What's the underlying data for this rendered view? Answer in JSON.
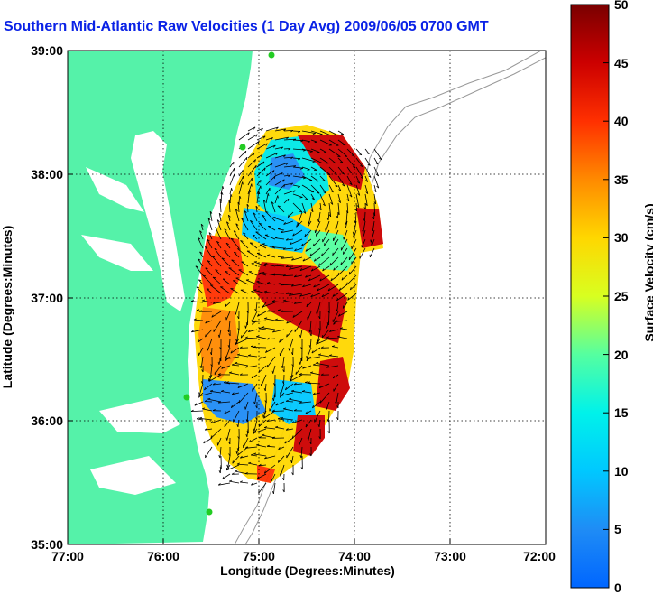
{
  "title": "Southern Mid-Atlantic Raw Velocities (1 Day Avg) 2009/06/05 0700 GMT",
  "axes": {
    "xlabel": "Longitude (Degrees:Minutes)",
    "ylabel": "Latitude (Degrees:Minutes)",
    "xticks": [
      "77:00",
      "76:00",
      "75:00",
      "74:00",
      "73:00",
      "72:00"
    ],
    "yticks": [
      "39:00",
      "38:00",
      "37:00",
      "36:00",
      "35:00"
    ]
  },
  "colorbar": {
    "label": "Surface Velocity (cm/s)",
    "ticks": [
      "0",
      "5",
      "10",
      "15",
      "20",
      "25",
      "30",
      "35",
      "40",
      "45",
      "50"
    ],
    "min": 0,
    "max": 50
  },
  "colors": {
    "land": "#55f2a9",
    "title": "#0a22e6",
    "station": "#22cc22",
    "bathymetry": "#999999"
  },
  "chart_data": {
    "type": "heatmap",
    "xlim": [
      -77,
      -72
    ],
    "ylim": [
      35,
      39
    ],
    "grid": true,
    "field": "surface current velocity with vector arrows"
  }
}
